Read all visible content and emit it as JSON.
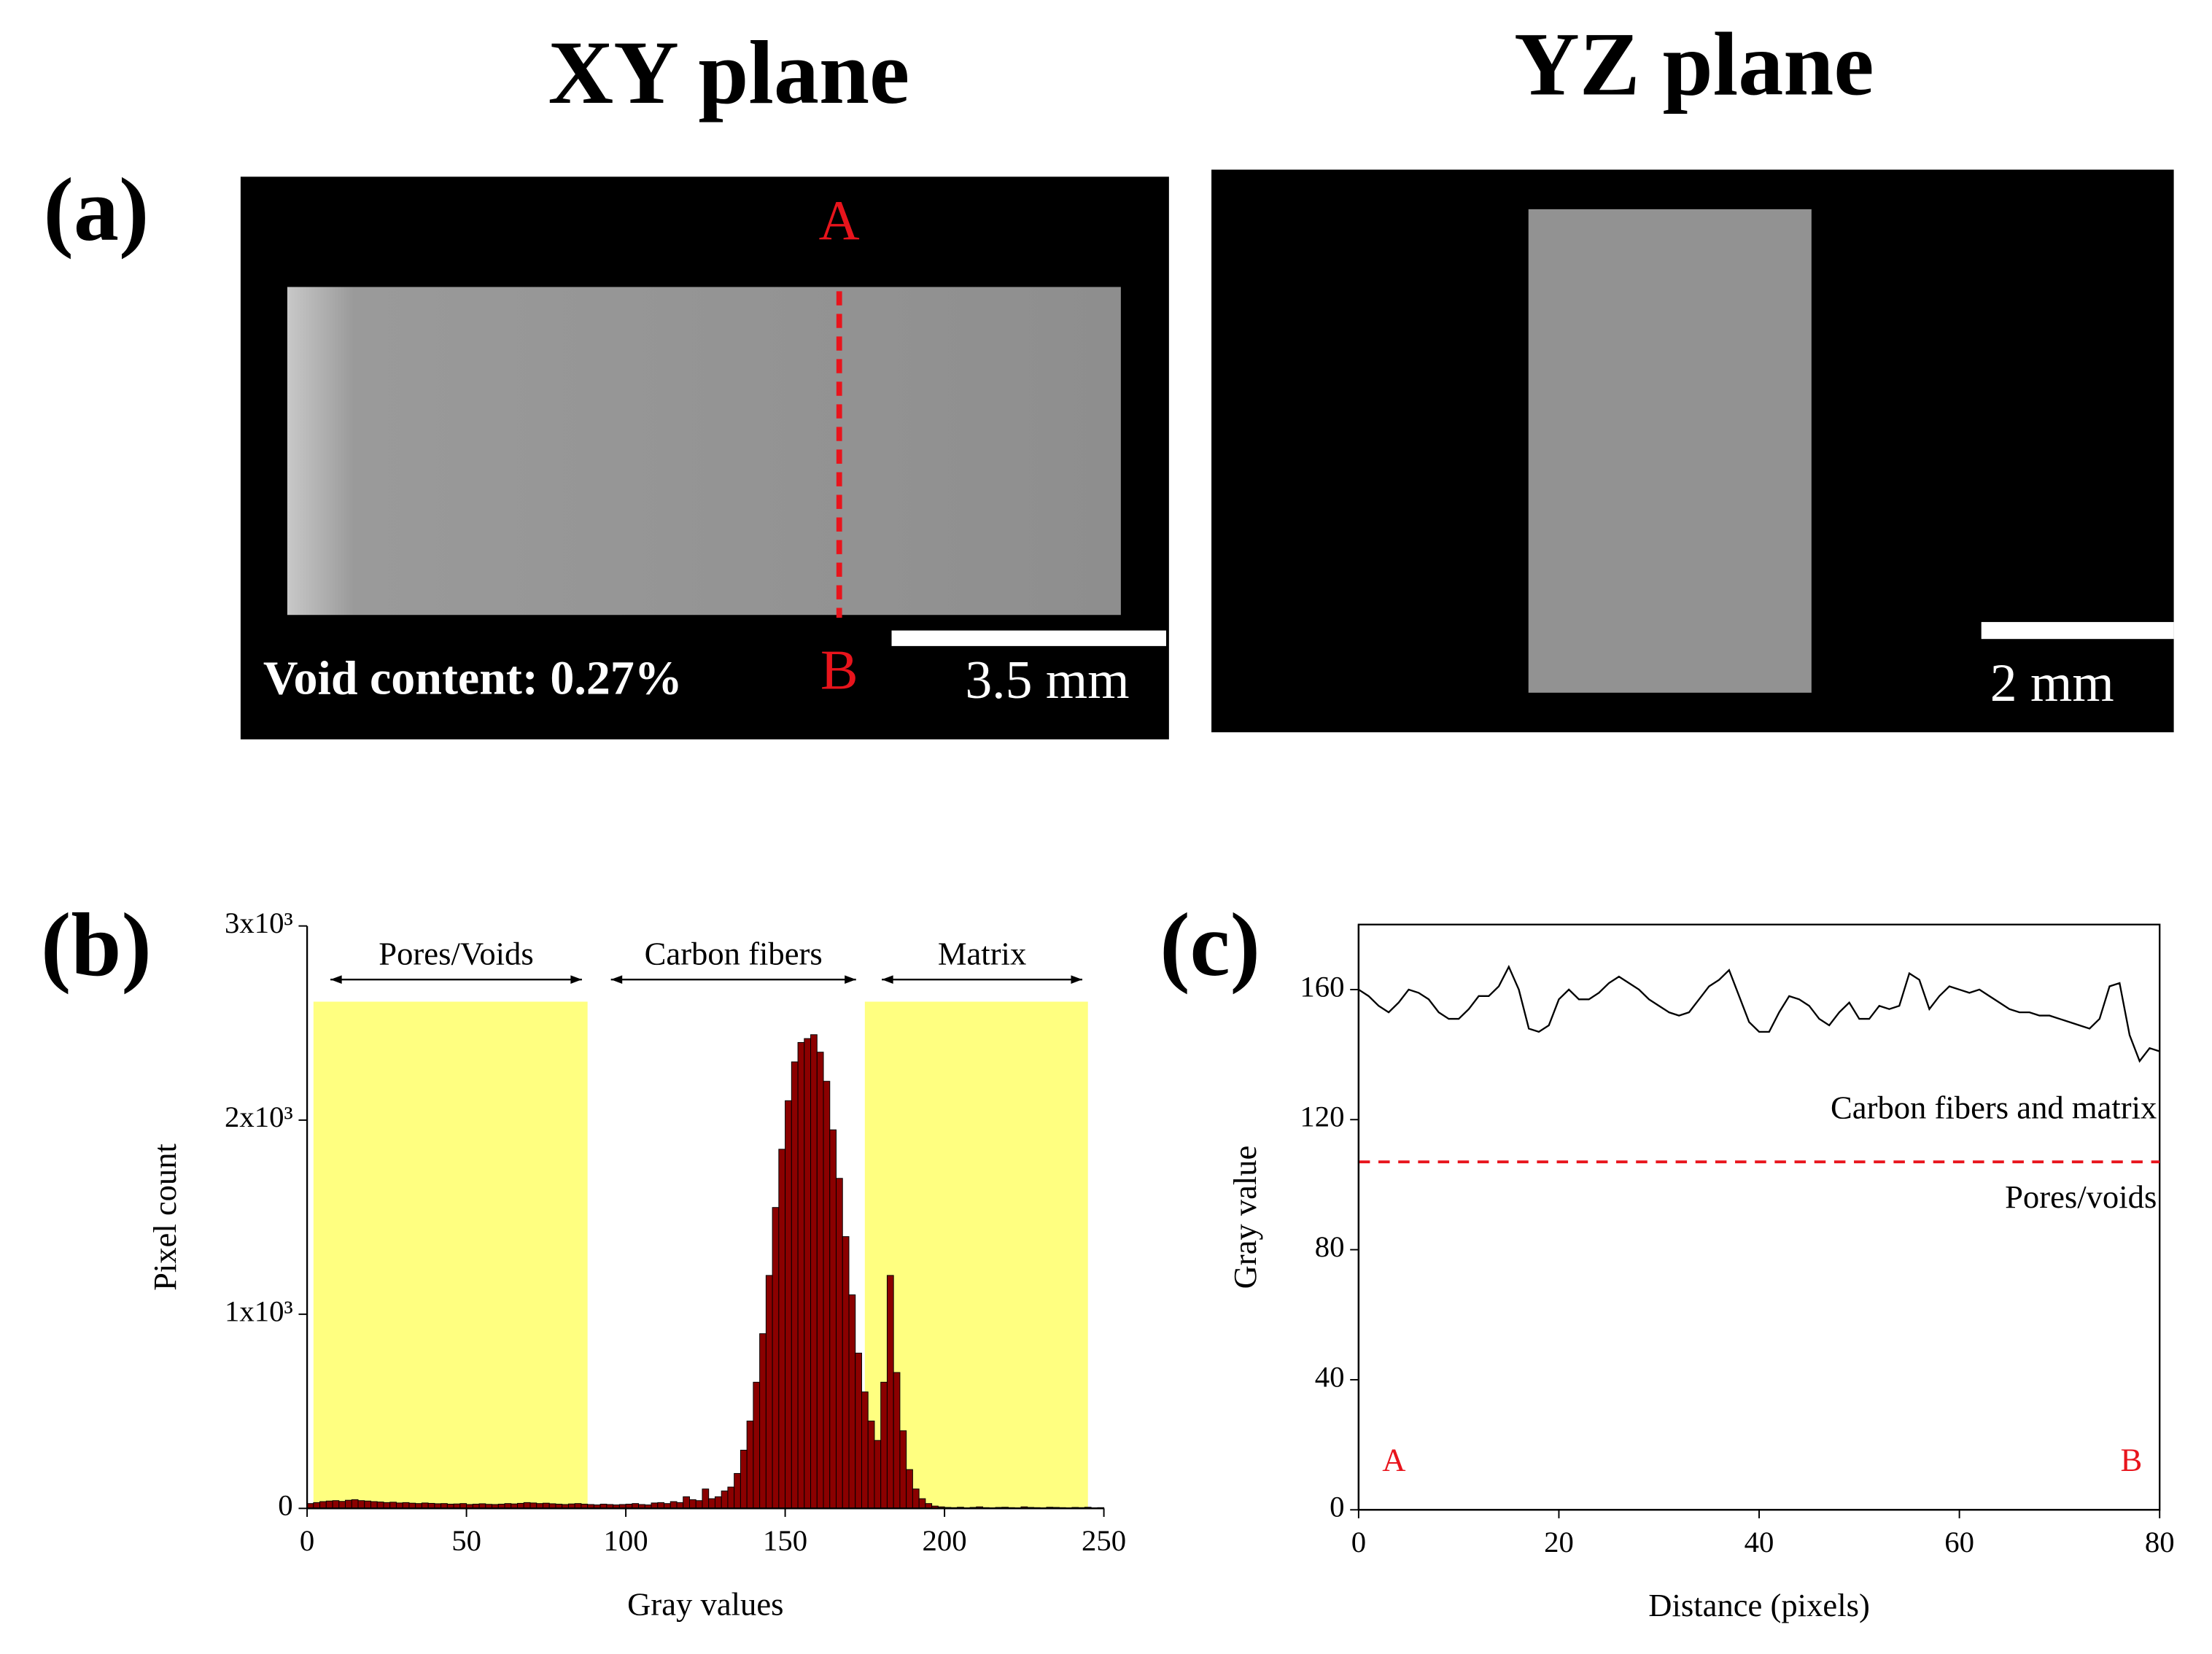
{
  "panel_a": {
    "label": "(a)",
    "xy_title": "XY plane",
    "yz_title": "YZ plane",
    "point_a": "A",
    "point_b": "B",
    "void_text": "Void content: 0.27%",
    "xy_scale": "3.5 mm",
    "yz_scale": "2 mm"
  },
  "chart_data": [
    {
      "type": "histogram",
      "panel": "(b)",
      "xlabel": "Gray values",
      "ylabel": "Pixel count",
      "color": "#8b0000",
      "xlim": [
        0,
        250
      ],
      "xticks": [
        0,
        50,
        100,
        150,
        200,
        250
      ],
      "ylim": [
        0,
        3000
      ],
      "yticks": [
        0,
        {
          "value": 1000,
          "label": "1x10³"
        },
        {
          "value": 2000,
          "label": "2x10³"
        },
        {
          "value": 3000,
          "label": "3x10³"
        }
      ],
      "regions": [
        {
          "label": "Pores/Voids",
          "range": [
            2,
            88
          ],
          "color": "#ffff80"
        },
        {
          "label": "Carbon fibers",
          "range": [
            90,
            174
          ]
        },
        {
          "label": "Matrix",
          "range": [
            175,
            245
          ],
          "color": "#ffff80"
        }
      ],
      "bins": [
        0,
        2,
        4,
        6,
        8,
        10,
        12,
        14,
        16,
        18,
        20,
        22,
        24,
        26,
        28,
        30,
        32,
        34,
        36,
        38,
        40,
        42,
        44,
        46,
        48,
        50,
        52,
        54,
        56,
        58,
        60,
        62,
        64,
        66,
        68,
        70,
        72,
        74,
        76,
        78,
        80,
        82,
        84,
        86,
        88,
        90,
        92,
        94,
        96,
        98,
        100,
        102,
        104,
        106,
        108,
        110,
        112,
        114,
        116,
        118,
        120,
        122,
        124,
        126,
        128,
        130,
        132,
        134,
        136,
        138,
        140,
        142,
        144,
        146,
        148,
        150,
        152,
        154,
        156,
        158,
        160,
        162,
        164,
        166,
        168,
        170,
        172,
        174,
        176,
        178,
        180,
        182,
        184,
        186,
        188,
        190,
        192,
        194,
        196,
        198,
        200,
        202,
        204,
        206,
        208,
        210,
        212,
        214,
        216,
        218,
        220,
        222,
        224,
        226,
        228,
        230,
        232,
        234,
        236,
        238,
        240,
        242,
        244,
        246,
        248,
        250
      ],
      "values": [
        25,
        30,
        35,
        38,
        40,
        36,
        42,
        45,
        40,
        38,
        35,
        33,
        30,
        32,
        28,
        30,
        27,
        25,
        28,
        26,
        24,
        25,
        22,
        23,
        25,
        20,
        22,
        24,
        21,
        20,
        22,
        25,
        23,
        26,
        30,
        28,
        25,
        27,
        24,
        22,
        20,
        23,
        25,
        22,
        20,
        18,
        22,
        20,
        18,
        20,
        22,
        25,
        20,
        18,
        28,
        30,
        25,
        35,
        30,
        60,
        45,
        40,
        100,
        50,
        60,
        90,
        110,
        180,
        300,
        450,
        650,
        900,
        1200,
        1550,
        1850,
        2100,
        2300,
        2400,
        2420,
        2440,
        2350,
        2200,
        1950,
        1700,
        1400,
        1100,
        800,
        600,
        450,
        350,
        650,
        1200,
        700,
        400,
        200,
        100,
        50,
        25,
        12,
        8,
        5,
        4,
        6,
        3,
        5,
        8,
        4,
        3,
        5,
        6,
        4,
        3,
        8,
        5,
        4,
        3,
        6,
        5,
        4,
        3,
        5,
        4,
        6,
        3,
        4
      ]
    },
    {
      "type": "line",
      "panel": "(c)",
      "xlabel": "Distance (pixels)",
      "ylabel": "Gray value",
      "color": "#000000",
      "xlim": [
        0,
        80
      ],
      "xticks": [
        0,
        20,
        40,
        60,
        80
      ],
      "ylim": [
        0,
        180
      ],
      "yticks": [
        0,
        40,
        80,
        120,
        160
      ],
      "threshold": {
        "value": 107,
        "color": "#e8141c"
      },
      "annotations": [
        "Carbon fibers and matrix",
        "Pores/voids",
        "A",
        "B"
      ],
      "x": [
        0,
        1,
        2,
        3,
        4,
        5,
        6,
        7,
        8,
        9,
        10,
        11,
        12,
        13,
        14,
        15,
        16,
        17,
        18,
        19,
        20,
        21,
        22,
        23,
        24,
        25,
        26,
        27,
        28,
        29,
        30,
        31,
        32,
        33,
        34,
        35,
        36,
        37,
        38,
        39,
        40,
        41,
        42,
        43,
        44,
        45,
        46,
        47,
        48,
        49,
        50,
        51,
        52,
        53,
        54,
        55,
        56,
        57,
        58,
        59,
        60,
        61,
        62,
        63,
        64,
        65,
        66,
        67,
        68,
        69,
        70,
        71,
        72,
        73,
        74,
        75,
        76,
        77,
        78,
        79,
        80
      ],
      "values": [
        160,
        158,
        155,
        153,
        156,
        160,
        159,
        157,
        153,
        151,
        151,
        154,
        158,
        158,
        161,
        167,
        160,
        148,
        147,
        149,
        157,
        160,
        157,
        157,
        159,
        162,
        164,
        162,
        160,
        157,
        155,
        153,
        152,
        153,
        157,
        161,
        163,
        166,
        158,
        150,
        147,
        147,
        153,
        158,
        157,
        155,
        151,
        149,
        153,
        156,
        151,
        151,
        155,
        154,
        155,
        165,
        163,
        154,
        158,
        161,
        160,
        159,
        160,
        158,
        156,
        154,
        153,
        153,
        152,
        152,
        151,
        150,
        149,
        148,
        151,
        161,
        162,
        146,
        138,
        142,
        141
      ]
    }
  ]
}
